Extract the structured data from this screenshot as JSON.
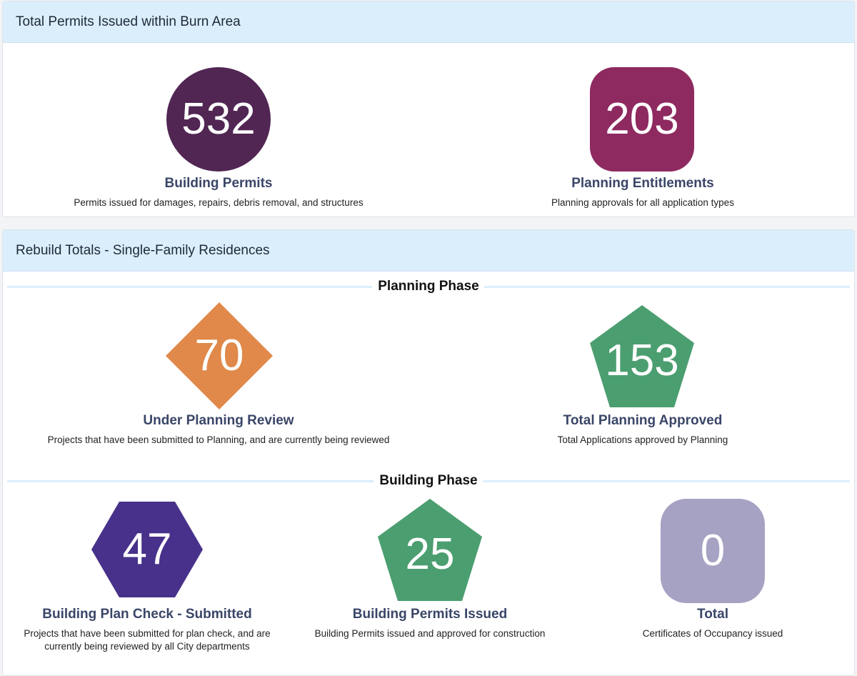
{
  "permits_panel": {
    "title": "Total Permits Issued within Burn Area",
    "metrics": [
      {
        "value": "532",
        "label": "Building Permits",
        "description": "Permits issued for damages, repairs, debris removal, and structures",
        "shape": "circle",
        "color": "#512653"
      },
      {
        "value": "203",
        "label": "Planning Entitlements",
        "description": "Planning approvals for all application types",
        "shape": "rounded-square",
        "color": "#8e2a60"
      }
    ]
  },
  "rebuild_panel": {
    "title": "Rebuild Totals - Single-Family Residences",
    "planning_phase": {
      "title": "Planning Phase",
      "metrics": [
        {
          "value": "70",
          "label": "Under Planning Review",
          "description": "Projects that have been submitted to Planning, and are currently being reviewed",
          "shape": "diamond",
          "color": "#e0894a"
        },
        {
          "value": "153",
          "label": "Total Planning Approved",
          "description": "Total Applications approved by Planning",
          "shape": "pentagon",
          "color": "#4b9e70"
        }
      ]
    },
    "building_phase": {
      "title": "Building Phase",
      "metrics": [
        {
          "value": "47",
          "label": "Building Plan Check - Submitted",
          "description": "Projects that have been submitted for plan check, and are currently being reviewed by all City departments",
          "shape": "hexagon",
          "color": "#47318a"
        },
        {
          "value": "25",
          "label": "Building Permits Issued",
          "description": "Building Permits issued and approved for construction",
          "shape": "pentagon",
          "color": "#4b9e70"
        },
        {
          "value": "0",
          "label": "Total",
          "description": "Certificates of Occupancy issued",
          "shape": "rounded-square",
          "color": "#a6a2c3"
        }
      ]
    }
  }
}
